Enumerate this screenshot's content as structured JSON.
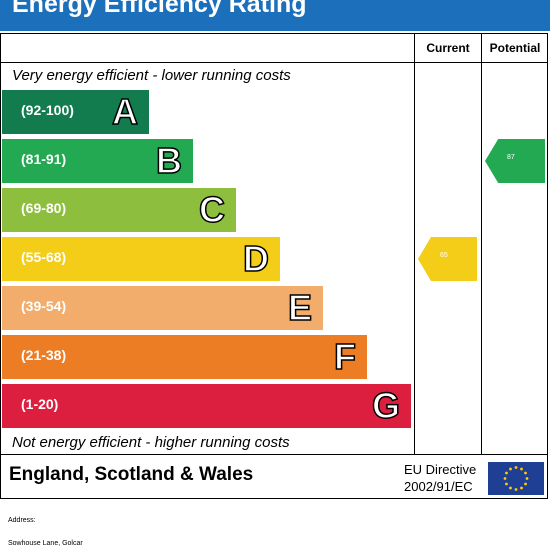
{
  "header": {
    "title": "Energy Efficiency Rating",
    "background": "#1c6fba"
  },
  "columns": {
    "current": "Current",
    "potential": "Potential"
  },
  "captions": {
    "top": "Very energy efficient - lower running costs",
    "bottom": "Not energy efficient - higher running costs"
  },
  "chart_data": {
    "type": "bar",
    "title": "Energy Efficiency Rating",
    "bands": [
      {
        "range": "(92-100)",
        "letter": "A",
        "color": "#127c4f"
      },
      {
        "range": "(81-91)",
        "letter": "B",
        "color": "#23a952"
      },
      {
        "range": "(69-80)",
        "letter": "C",
        "color": "#8dbe3e"
      },
      {
        "range": "(55-68)",
        "letter": "D",
        "color": "#f3cd17"
      },
      {
        "range": "(39-54)",
        "letter": "E",
        "color": "#f2ac6b"
      },
      {
        "range": "(21-38)",
        "letter": "F",
        "color": "#ec7d24"
      },
      {
        "range": "(1-20)",
        "letter": "G",
        "color": "#dc1f3f"
      }
    ],
    "current": {
      "value": 65,
      "band": "D",
      "color": "#f3cd17"
    },
    "potential": {
      "value": 87,
      "band": "B",
      "color": "#23a952"
    }
  },
  "footer": {
    "region": "England, Scotland & Wales",
    "eu_line1": "EU Directive",
    "eu_line2": "2002/91/EC"
  },
  "below": {
    "address_label": "Address:",
    "address_value": "Sowhouse Lane, Golcar"
  }
}
